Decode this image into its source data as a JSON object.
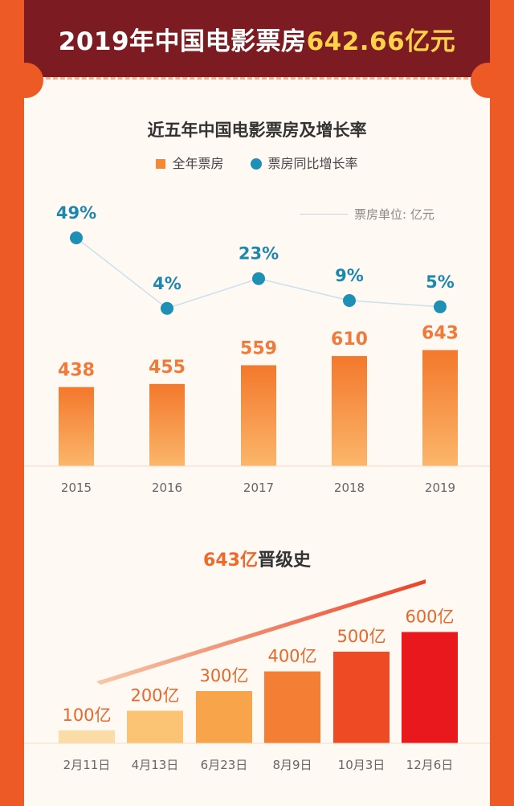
{
  "header": {
    "title_prefix": "2019年中国电影票房",
    "title_value": "642.66亿元"
  },
  "chart1": {
    "title": "近五年中国电影票房及增长率",
    "legend_bar": "全年票房",
    "legend_line": "票房同比增长率",
    "unit_label": "票房单位: 亿元"
  },
  "chart2": {
    "title_accent": "643亿",
    "title_rest": "晋级史"
  },
  "colors": {
    "bar_top": "#f38234",
    "bar_bottom": "#fbb86a",
    "dot": "#1e8fb5",
    "label_orange": "#ef7a3a",
    "label_blue": "#1d88ad"
  },
  "chart_data": [
    {
      "type": "bar",
      "categories": [
        "2015",
        "2016",
        "2017",
        "2018",
        "2019"
      ],
      "series": [
        {
          "name": "全年票房",
          "values": [
            438,
            455,
            559,
            610,
            643
          ]
        },
        {
          "name": "票房同比增长率",
          "type": "line",
          "values": [
            49,
            4,
            23,
            9,
            5
          ],
          "labels": [
            "49%",
            "4%",
            "23%",
            "9%",
            "5%"
          ]
        }
      ],
      "title": "近五年中国电影票房及增长率",
      "legend_position": "top"
    },
    {
      "type": "bar",
      "categories": [
        "2月11日",
        "4月13日",
        "6月23日",
        "8月9日",
        "10月3日",
        "12月6日"
      ],
      "values": [
        100,
        200,
        300,
        400,
        500,
        600
      ],
      "labels": [
        "100亿",
        "200亿",
        "300亿",
        "400亿",
        "500亿",
        "600亿"
      ],
      "title": "643亿晋级史"
    }
  ]
}
